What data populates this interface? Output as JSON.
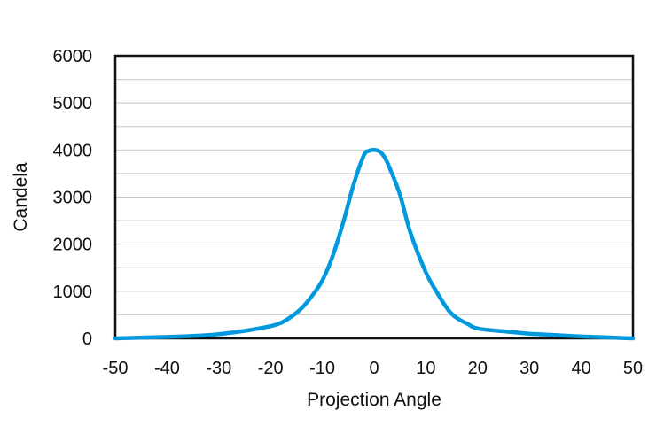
{
  "chart_data": {
    "type": "line",
    "title": "",
    "xlabel": "Projection Angle",
    "ylabel": "Candela",
    "xlim": [
      -50,
      50
    ],
    "ylim": [
      0,
      6000
    ],
    "x_ticks": [
      -50,
      -40,
      -30,
      -20,
      -10,
      0,
      10,
      20,
      30,
      40,
      50
    ],
    "y_ticks": [
      0,
      1000,
      2000,
      3000,
      4000,
      5000,
      6000
    ],
    "grid_y": [
      500,
      1000,
      1500,
      2000,
      2500,
      3000,
      3500,
      4000,
      4500,
      5000,
      5500
    ],
    "grid": true,
    "legend": "none",
    "series": [
      {
        "color": "#0099dd",
        "x": [
          -50,
          -40,
          -35,
          -30,
          -25,
          -20,
          -18,
          -16,
          -14,
          -12,
          -10,
          -8,
          -6,
          -4,
          -2,
          -1,
          0,
          1,
          2,
          3,
          5,
          7,
          10,
          12,
          14,
          15,
          16,
          18,
          20,
          25,
          30,
          35,
          40,
          45,
          50
        ],
        "y": [
          0,
          30,
          50,
          90,
          160,
          260,
          330,
          460,
          640,
          900,
          1230,
          1750,
          2450,
          3250,
          3880,
          3980,
          4000,
          3970,
          3850,
          3620,
          3050,
          2250,
          1400,
          1000,
          650,
          520,
          430,
          310,
          210,
          150,
          100,
          70,
          40,
          20,
          0
        ]
      }
    ]
  }
}
